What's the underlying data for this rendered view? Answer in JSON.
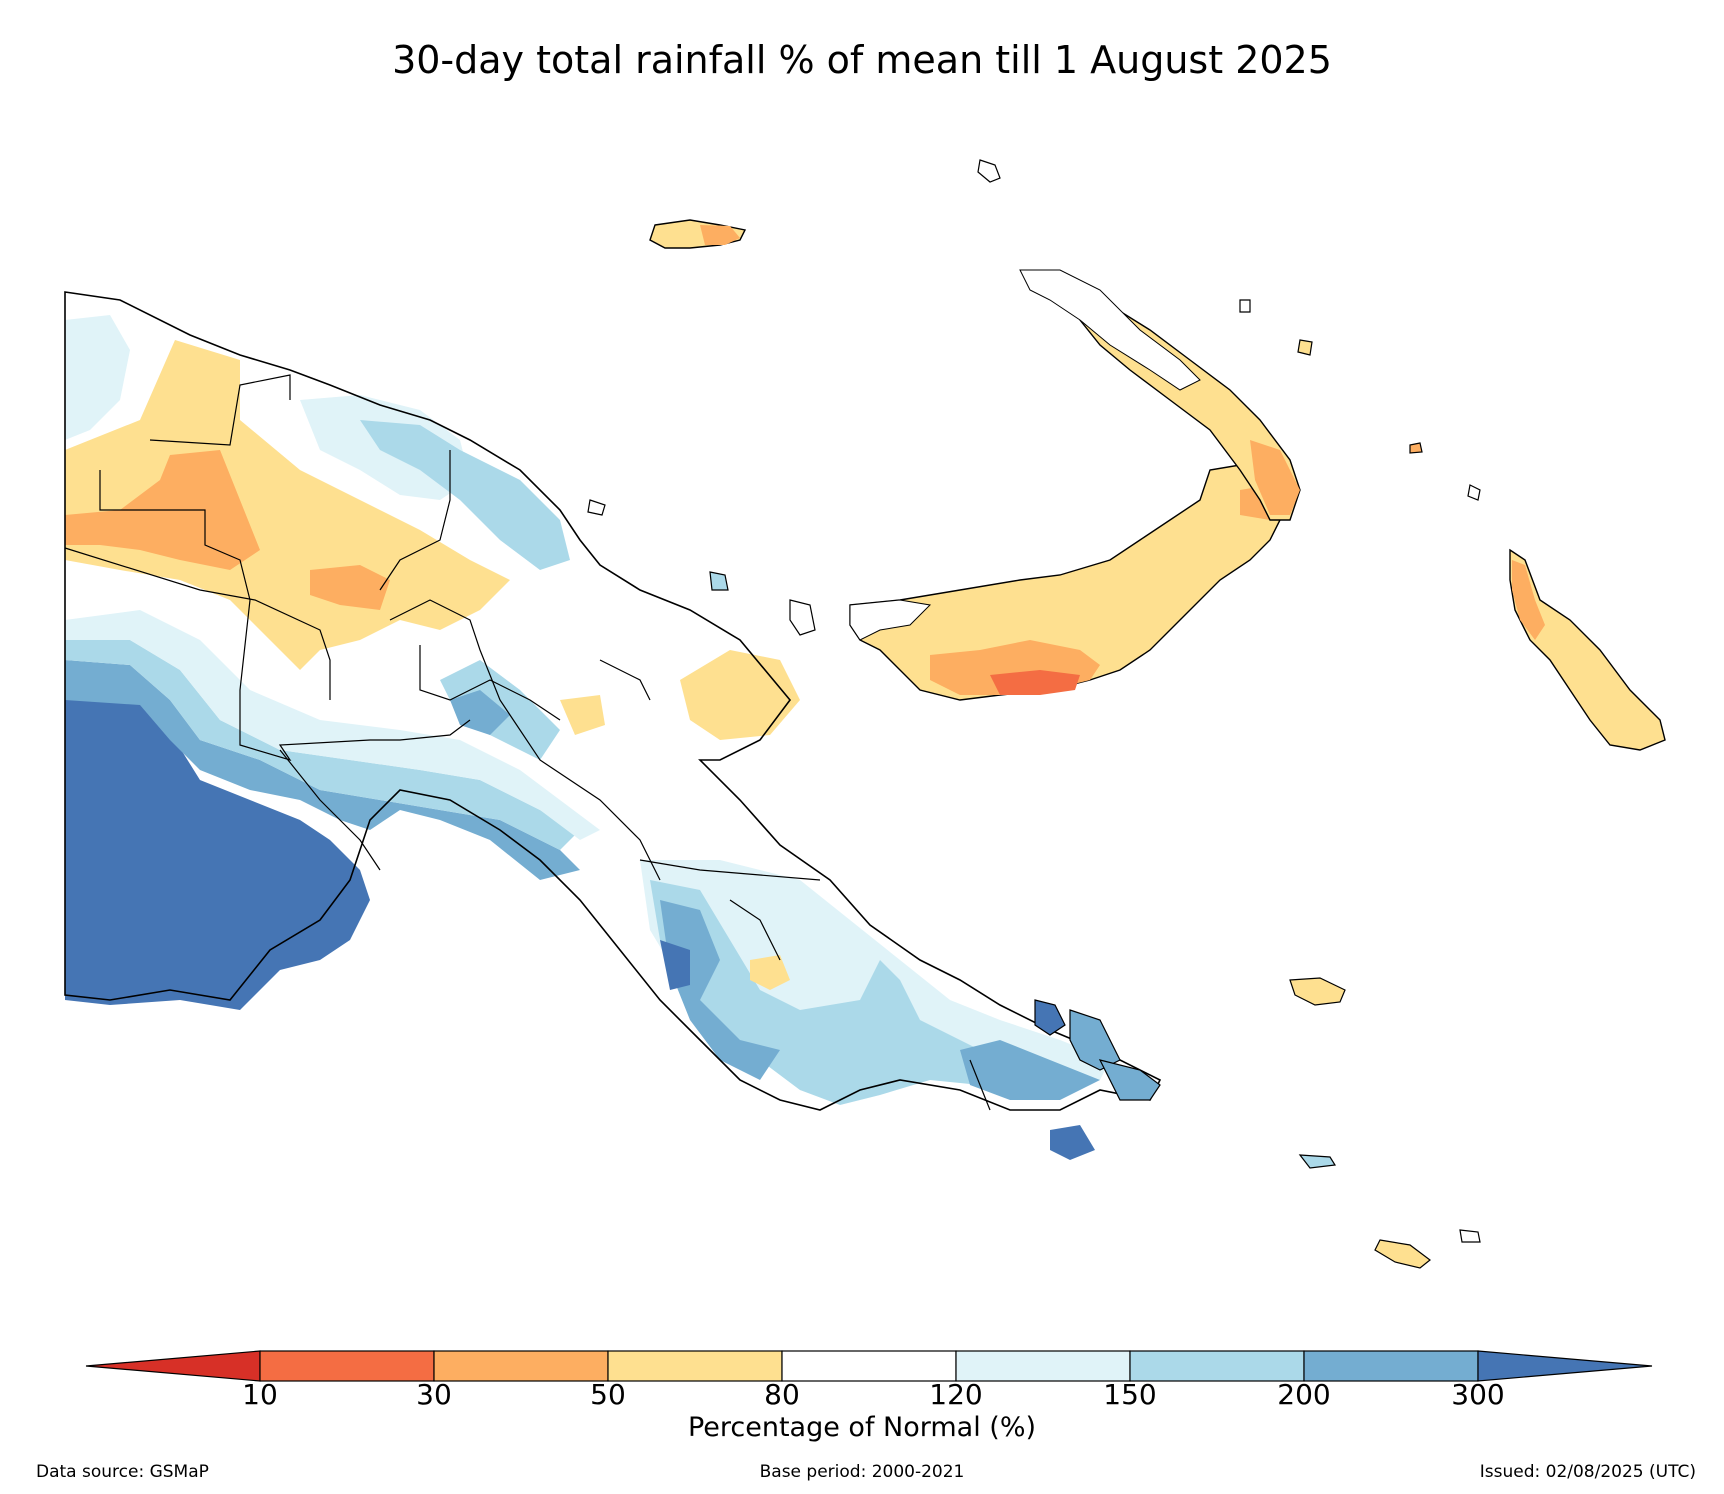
{
  "title": "30-day total rainfall % of mean till 1 August 2025",
  "legend": {
    "title": "Percentage of Normal (%)",
    "ticks": [
      "10",
      "30",
      "50",
      "80",
      "120",
      "150",
      "200",
      "300"
    ],
    "colors": [
      "#d73027",
      "#f46d43",
      "#fdae61",
      "#fee090",
      "#ffffff",
      "#e0f3f8",
      "#abd9e9",
      "#74add1",
      "#4575b4"
    ]
  },
  "footer": {
    "source": "Data source: GSMaP",
    "base_period": "Base period: 2000-2021",
    "issued": "Issued: 02/08/2025 (UTC)"
  }
}
